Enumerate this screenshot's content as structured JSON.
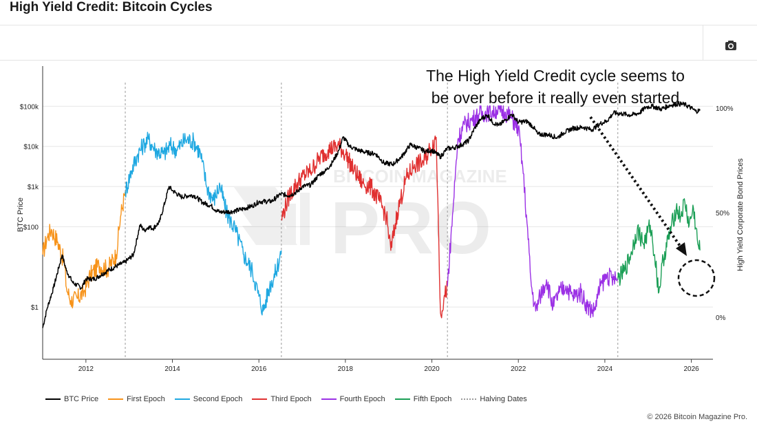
{
  "page": {
    "title": "High Yield Credit: Bitcoin Cycles",
    "copyright": "© 2026 Bitcoin Magazine Pro.",
    "toolbar": {
      "camera_icon": "camera-icon"
    }
  },
  "annotation": {
    "line1": "The High Yield Credit cycle seems to",
    "line2": "be over before it really even started"
  },
  "watermark": {
    "top": "BITCOIN MAGAZINE",
    "main": "PRO"
  },
  "chart_data": {
    "type": "line",
    "xlim": [
      2011.0,
      2026.5
    ],
    "x_ticks": [
      2012,
      2014,
      2016,
      2018,
      2020,
      2022,
      2024,
      2026
    ],
    "x_tick_labels": [
      "2012",
      "2014",
      "2016",
      "2018",
      "2020",
      "2022",
      "2024",
      "2026"
    ],
    "left_axis": {
      "label": "BTC Price",
      "scale": "log",
      "range": [
        0.05,
        1000000
      ],
      "ticks": [
        1,
        100,
        1000,
        10000,
        100000
      ],
      "tick_labels": [
        "$1",
        "$100",
        "$1k",
        "$10k",
        "$100k"
      ]
    },
    "right_axis": {
      "label": "High Yield Corporate Bond Prices",
      "range_percent": [
        -20,
        120
      ],
      "ticks": [
        0,
        50,
        100
      ],
      "tick_labels": [
        "0%",
        "50%",
        "100%"
      ]
    },
    "halving_dates": [
      2012.91,
      2016.52,
      2020.36,
      2024.3
    ],
    "btc_series": {
      "name": "BTC Price",
      "color": "#000000",
      "points": [
        [
          2011.0,
          0.3
        ],
        [
          2011.1,
          0.9
        ],
        [
          2011.25,
          3
        ],
        [
          2011.45,
          20
        ],
        [
          2011.55,
          8
        ],
        [
          2011.7,
          4
        ],
        [
          2011.9,
          3
        ],
        [
          2012.0,
          5
        ],
        [
          2012.2,
          5
        ],
        [
          2012.5,
          8
        ],
        [
          2012.75,
          11
        ],
        [
          2012.9,
          13
        ],
        [
          2013.1,
          20
        ],
        [
          2013.25,
          110
        ],
        [
          2013.35,
          80
        ],
        [
          2013.45,
          100
        ],
        [
          2013.55,
          90
        ],
        [
          2013.7,
          130
        ],
        [
          2013.85,
          500
        ],
        [
          2013.92,
          1000
        ],
        [
          2014.0,
          800
        ],
        [
          2014.2,
          550
        ],
        [
          2014.4,
          600
        ],
        [
          2014.5,
          600
        ],
        [
          2014.7,
          400
        ],
        [
          2014.9,
          330
        ],
        [
          2015.0,
          260
        ],
        [
          2015.1,
          230
        ],
        [
          2015.4,
          240
        ],
        [
          2015.6,
          270
        ],
        [
          2015.85,
          330
        ],
        [
          2016.0,
          420
        ],
        [
          2016.3,
          430
        ],
        [
          2016.5,
          650
        ],
        [
          2016.7,
          600
        ],
        [
          2016.9,
          750
        ],
        [
          2017.0,
          1000
        ],
        [
          2017.2,
          1100
        ],
        [
          2017.4,
          2000
        ],
        [
          2017.55,
          2500
        ],
        [
          2017.7,
          4000
        ],
        [
          2017.85,
          8000
        ],
        [
          2017.95,
          17000
        ],
        [
          2018.1,
          10000
        ],
        [
          2018.3,
          8000
        ],
        [
          2018.5,
          7000
        ],
        [
          2018.7,
          6500
        ],
        [
          2018.9,
          3800
        ],
        [
          2019.1,
          3600
        ],
        [
          2019.3,
          5500
        ],
        [
          2019.5,
          11000
        ],
        [
          2019.7,
          9000
        ],
        [
          2019.85,
          7500
        ],
        [
          2020.0,
          8000
        ],
        [
          2020.2,
          5500
        ],
        [
          2020.35,
          8800
        ],
        [
          2020.5,
          9200
        ],
        [
          2020.7,
          11000
        ],
        [
          2020.85,
          14000
        ],
        [
          2021.0,
          30000
        ],
        [
          2021.15,
          50000
        ],
        [
          2021.3,
          60000
        ],
        [
          2021.4,
          40000
        ],
        [
          2021.55,
          33000
        ],
        [
          2021.7,
          45000
        ],
        [
          2021.85,
          63000
        ],
        [
          2022.0,
          40000
        ],
        [
          2022.2,
          42000
        ],
        [
          2022.35,
          30000
        ],
        [
          2022.45,
          20000
        ],
        [
          2022.7,
          19500
        ],
        [
          2022.9,
          16500
        ],
        [
          2023.05,
          22000
        ],
        [
          2023.25,
          28000
        ],
        [
          2023.5,
          30000
        ],
        [
          2023.7,
          26000
        ],
        [
          2023.9,
          37000
        ],
        [
          2024.05,
          43000
        ],
        [
          2024.2,
          68000
        ],
        [
          2024.4,
          65000
        ],
        [
          2024.6,
          60000
        ],
        [
          2024.8,
          68000
        ],
        [
          2024.95,
          95000
        ],
        [
          2025.1,
          100000
        ],
        [
          2025.3,
          85000
        ],
        [
          2025.5,
          105000
        ],
        [
          2025.7,
          115000
        ],
        [
          2025.85,
          110000
        ],
        [
          2026.0,
          90000
        ],
        [
          2026.1,
          75000
        ],
        [
          2026.2,
          78000
        ]
      ]
    },
    "series": [
      {
        "name": "First Epoch",
        "color": "#f7931a",
        "points": [
          [
            2011.0,
            30
          ],
          [
            2011.1,
            38
          ],
          [
            2011.2,
            42
          ],
          [
            2011.35,
            36
          ],
          [
            2011.5,
            26
          ],
          [
            2011.55,
            14
          ],
          [
            2011.65,
            8
          ],
          [
            2011.8,
            9
          ],
          [
            2011.95,
            12
          ],
          [
            2012.1,
            20
          ],
          [
            2012.3,
            25
          ],
          [
            2012.5,
            23
          ],
          [
            2012.7,
            30
          ],
          [
            2012.8,
            48
          ],
          [
            2012.91,
            60
          ]
        ]
      },
      {
        "name": "Second Epoch",
        "color": "#1fa8e1",
        "points": [
          [
            2012.91,
            60
          ],
          [
            2013.05,
            70
          ],
          [
            2013.2,
            78
          ],
          [
            2013.35,
            83
          ],
          [
            2013.45,
            85
          ],
          [
            2013.6,
            80
          ],
          [
            2013.8,
            78
          ],
          [
            2013.95,
            82
          ],
          [
            2014.1,
            80
          ],
          [
            2014.3,
            85
          ],
          [
            2014.5,
            84
          ],
          [
            2014.65,
            78
          ],
          [
            2014.8,
            62
          ],
          [
            2014.95,
            56
          ],
          [
            2015.1,
            63
          ],
          [
            2015.25,
            50
          ],
          [
            2015.45,
            42
          ],
          [
            2015.65,
            30
          ],
          [
            2015.85,
            22
          ],
          [
            2016.0,
            10
          ],
          [
            2016.1,
            3
          ],
          [
            2016.25,
            15
          ],
          [
            2016.4,
            22
          ],
          [
            2016.52,
            32
          ]
        ]
      },
      {
        "name": "Third Epoch",
        "color": "#e03030",
        "points": [
          [
            2016.52,
            47
          ],
          [
            2016.7,
            58
          ],
          [
            2016.85,
            63
          ],
          [
            2017.0,
            67
          ],
          [
            2017.2,
            70
          ],
          [
            2017.4,
            76
          ],
          [
            2017.6,
            80
          ],
          [
            2017.85,
            82
          ],
          [
            2018.0,
            78
          ],
          [
            2018.2,
            70
          ],
          [
            2018.4,
            64
          ],
          [
            2018.6,
            62
          ],
          [
            2018.8,
            55
          ],
          [
            2018.95,
            48
          ],
          [
            2019.05,
            32
          ],
          [
            2019.2,
            50
          ],
          [
            2019.4,
            66
          ],
          [
            2019.6,
            73
          ],
          [
            2019.8,
            74
          ],
          [
            2019.95,
            80
          ],
          [
            2020.1,
            86
          ],
          [
            2020.15,
            45
          ],
          [
            2020.2,
            2
          ],
          [
            2020.3,
            10
          ],
          [
            2020.36,
            15
          ]
        ]
      },
      {
        "name": "Fourth Epoch",
        "color": "#9b30e5",
        "points": [
          [
            2020.36,
            15
          ],
          [
            2020.5,
            55
          ],
          [
            2020.6,
            85
          ],
          [
            2020.75,
            92
          ],
          [
            2020.9,
            94
          ],
          [
            2021.1,
            97
          ],
          [
            2021.3,
            98
          ],
          [
            2021.5,
            99
          ],
          [
            2021.7,
            98
          ],
          [
            2021.85,
            95
          ],
          [
            2022.0,
            90
          ],
          [
            2022.1,
            72
          ],
          [
            2022.2,
            45
          ],
          [
            2022.3,
            15
          ],
          [
            2022.4,
            3
          ],
          [
            2022.5,
            10
          ],
          [
            2022.65,
            18
          ],
          [
            2022.8,
            5
          ],
          [
            2022.95,
            12
          ],
          [
            2023.1,
            15
          ],
          [
            2023.25,
            10
          ],
          [
            2023.45,
            12
          ],
          [
            2023.6,
            5
          ],
          [
            2023.75,
            3
          ],
          [
            2023.9,
            15
          ],
          [
            2024.05,
            20
          ],
          [
            2024.2,
            18
          ],
          [
            2024.3,
            18
          ]
        ]
      },
      {
        "name": "Fifth Epoch",
        "color": "#1a9e55",
        "points": [
          [
            2024.3,
            18
          ],
          [
            2024.45,
            22
          ],
          [
            2024.6,
            30
          ],
          [
            2024.75,
            42
          ],
          [
            2024.9,
            35
          ],
          [
            2025.05,
            44
          ],
          [
            2025.15,
            30
          ],
          [
            2025.25,
            12
          ],
          [
            2025.35,
            28
          ],
          [
            2025.5,
            40
          ],
          [
            2025.65,
            52
          ],
          [
            2025.75,
            48
          ],
          [
            2025.85,
            55
          ],
          [
            2025.95,
            44
          ],
          [
            2026.05,
            52
          ],
          [
            2026.15,
            35
          ],
          [
            2026.2,
            32
          ]
        ]
      }
    ],
    "legend": [
      {
        "label": "BTC Price",
        "color": "#000000",
        "style": "solid"
      },
      {
        "label": "First Epoch",
        "color": "#f7931a",
        "style": "solid"
      },
      {
        "label": "Second Epoch",
        "color": "#1fa8e1",
        "style": "solid"
      },
      {
        "label": "Third Epoch",
        "color": "#e03030",
        "style": "solid"
      },
      {
        "label": "Fourth Epoch",
        "color": "#9b30e5",
        "style": "solid"
      },
      {
        "label": "Fifth Epoch",
        "color": "#1a9e55",
        "style": "solid"
      },
      {
        "label": "Halving Dates",
        "color": "#999999",
        "style": "dotted"
      }
    ],
    "grid": true,
    "legend_placement": "bottom-left",
    "annotation_marker": "dotted arrow pointing to dashed circle at end of Fifth Epoch"
  }
}
